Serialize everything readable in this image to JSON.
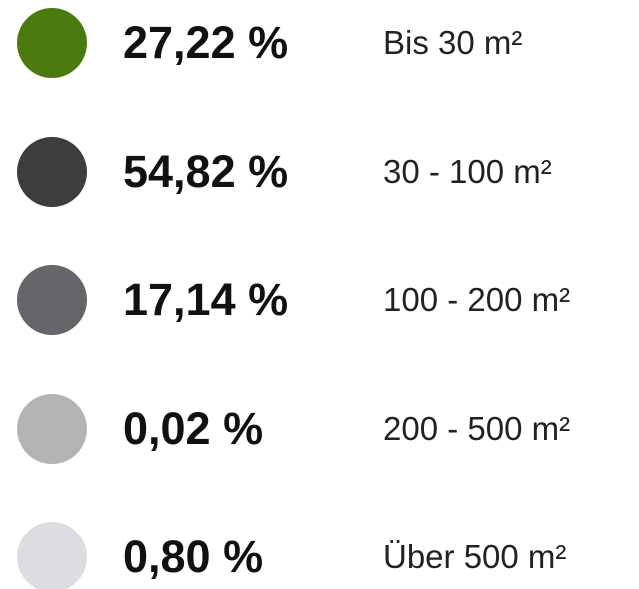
{
  "legend": {
    "items": [
      {
        "color": "#4a7a0e",
        "value": "27,22 %",
        "label": "Bis 30 m²"
      },
      {
        "color": "#3d3d3d",
        "value": "54,82 %",
        "label": "30 - 100 m²"
      },
      {
        "color": "#66666a",
        "value": "17,14 %",
        "label": "100 - 200 m²"
      },
      {
        "color": "#b3b3b3",
        "value": "0,02 %",
        "label": "200 - 500 m²"
      },
      {
        "color": "#dcdde0",
        "value": "0,80 %",
        "label": "Über 500 m²"
      }
    ]
  }
}
